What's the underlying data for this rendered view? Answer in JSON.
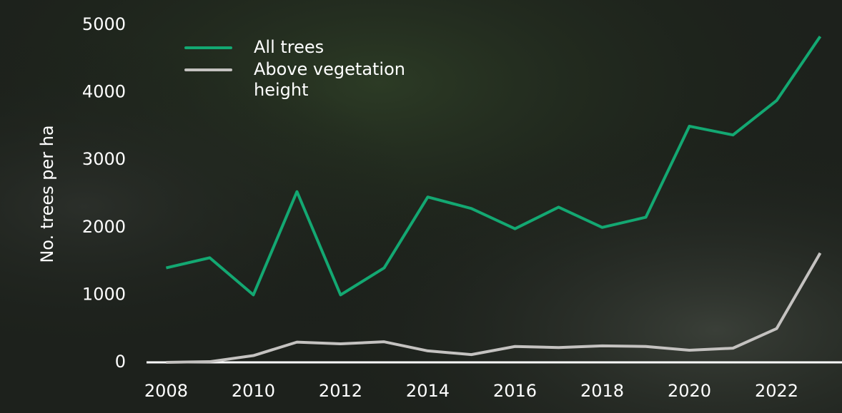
{
  "chart_data": {
    "type": "line",
    "y_label": "No. trees per ha",
    "x": [
      2008,
      2009,
      2010,
      2011,
      2012,
      2013,
      2014,
      2015,
      2016,
      2017,
      2018,
      2019,
      2020,
      2021,
      2022,
      2023
    ],
    "series": [
      {
        "name": "All trees",
        "color": "#13a872",
        "values": [
          1400,
          1550,
          1000,
          2530,
          1000,
          1400,
          2450,
          2280,
          1980,
          2300,
          2000,
          2150,
          3500,
          3370,
          3880,
          4830
        ]
      },
      {
        "name": "Above vegetation height",
        "color": "#c4c2c0",
        "values": [
          0,
          10,
          100,
          300,
          275,
          305,
          170,
          115,
          235,
          220,
          245,
          235,
          180,
          210,
          500,
          1620
        ]
      }
    ],
    "xlim": [
      2007.55,
      2023.5
    ],
    "xticks": [
      2008,
      2010,
      2012,
      2014,
      2016,
      2018,
      2020,
      2022
    ],
    "ylim": [
      0,
      5000
    ],
    "yticks": [
      0,
      1000,
      2000,
      3000,
      4000,
      5000
    ],
    "grid": false,
    "legend_position": "top-left"
  }
}
